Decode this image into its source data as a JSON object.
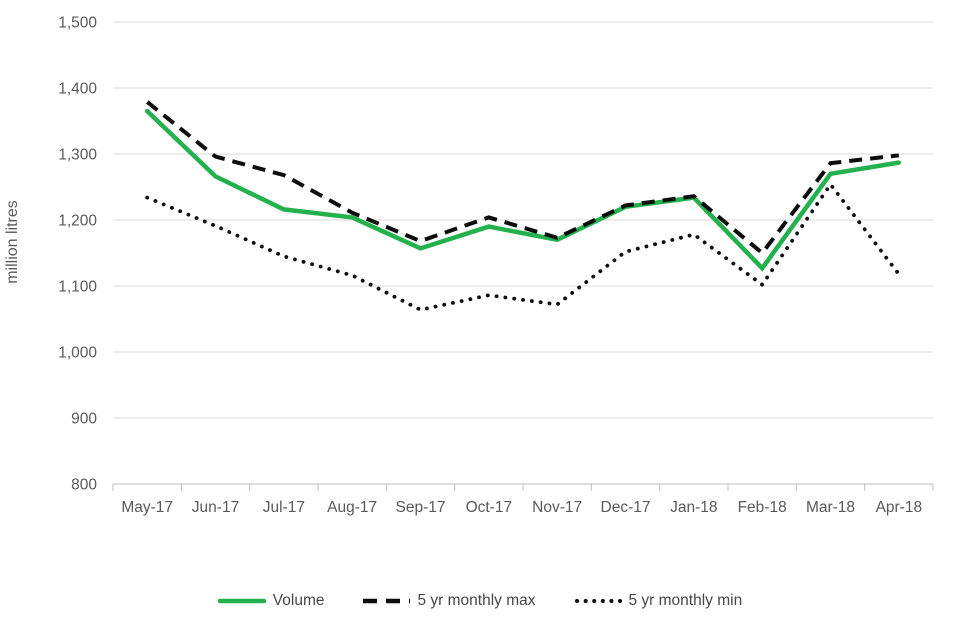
{
  "chart_data": {
    "type": "line",
    "title": "",
    "xlabel": "",
    "ylabel": "million litres",
    "ylim": [
      800,
      1500
    ],
    "grid": true,
    "legend_position": "bottom",
    "categories": [
      "May-17",
      "Jun-17",
      "Jul-17",
      "Aug-17",
      "Sep-17",
      "Oct-17",
      "Nov-17",
      "Dec-17",
      "Jan-18",
      "Feb-18",
      "Mar-18",
      "Apr-18"
    ],
    "y_ticks": [
      {
        "value": 1500,
        "label": "1,500"
      },
      {
        "value": 1400,
        "label": "1,400"
      },
      {
        "value": 1300,
        "label": "1,300"
      },
      {
        "value": 1200,
        "label": "1,200"
      },
      {
        "value": 1100,
        "label": "1,100"
      },
      {
        "value": 1000,
        "label": "1,000"
      },
      {
        "value": 900,
        "label": "900"
      },
      {
        "value": 800,
        "label": "800"
      }
    ],
    "series": [
      {
        "name": "Volume",
        "line_style": "solid",
        "color": "#22b14c",
        "values": [
          1365,
          1266,
          1216,
          1204,
          1157,
          1190,
          1170,
          1220,
          1234,
          1127,
          1270,
          1287
        ]
      },
      {
        "name": "5 yr monthly max",
        "line_style": "dashed",
        "color": "#0d0d0d",
        "values": [
          1379,
          1296,
          1268,
          1211,
          1168,
          1204,
          1173,
          1222,
          1236,
          1150,
          1286,
          1298
        ]
      },
      {
        "name": "5 yr monthly min",
        "line_style": "dotted",
        "color": "#0d0d0d",
        "values": [
          1234,
          1191,
          1145,
          1116,
          1064,
          1086,
          1072,
          1152,
          1178,
          1102,
          1254,
          1118
        ]
      }
    ],
    "axis_colors": {
      "gridline": "#d9d9d9",
      "axis_line": "#bfbfbf",
      "tick_text": "#595959"
    }
  }
}
